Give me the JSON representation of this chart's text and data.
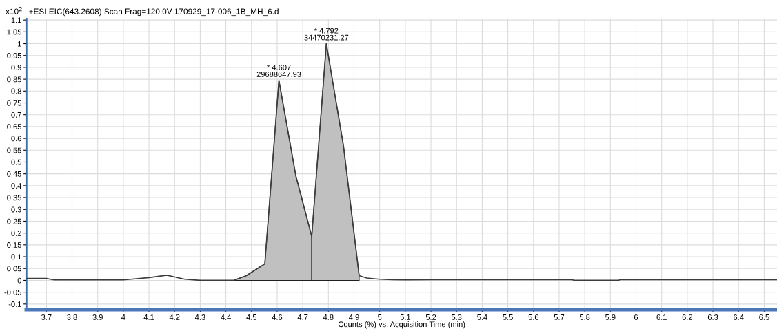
{
  "chart_data": {
    "type": "line",
    "title": "+ESI EIC(643.2608) Scan Frag=120.0V 170929_17-006_1B_MH_6.d",
    "xlabel": "Counts (%) vs. Acquisition Time (min)",
    "ylabel": "x10$^{2}$",
    "series": [
      {
        "color": "#3c3c3c",
        "x": [
          3.622,
          3.7,
          3.73,
          4.0,
          4.1,
          4.17,
          4.24,
          4.3,
          4.43,
          4.48,
          4.552,
          4.607,
          4.673,
          4.735,
          4.792,
          4.859,
          4.92,
          4.95,
          5.0,
          5.05,
          5.1,
          5.2,
          5.75,
          5.76,
          5.93,
          5.94,
          6.55
        ],
        "values": [
          0.008,
          0.008,
          0.002,
          0.002,
          0.012,
          0.022,
          0.005,
          0.0,
          0.0,
          0.02,
          0.07,
          0.845,
          0.442,
          0.186,
          1.0,
          0.567,
          0.02,
          0.01,
          0.005,
          0.003,
          0.002,
          0.003,
          0.003,
          0.0,
          0.0,
          0.003,
          0.003
        ]
      },
      {
        "type": "area",
        "color": "#c0c0c0",
        "x": [
          4.43,
          4.48,
          4.552,
          4.607,
          4.673,
          4.735
        ],
        "values": [
          0.0,
          0.02,
          0.07,
          0.845,
          0.442,
          0.186
        ]
      },
      {
        "type": "area",
        "color": "#c0c0c0",
        "x": [
          4.735,
          4.792,
          4.859,
          4.92
        ],
        "values": [
          0.186,
          1.0,
          0.567,
          0.02
        ]
      }
    ],
    "annotations": [
      {
        "text": "* 4.607\n29688647.93",
        "x": 4.607,
        "y": 0.845
      },
      {
        "text": "* 4.792\n34470231.27",
        "x": 4.792,
        "y": 1.0
      }
    ],
    "xlim": [
      3.622,
      6.55
    ],
    "xticks": [
      3.7,
      3.8,
      3.9,
      4,
      4.1,
      4.2,
      4.3,
      4.4,
      4.5,
      4.6,
      4.7,
      4.8,
      4.9,
      5,
      5.1,
      5.2,
      5.3,
      5.4,
      5.5,
      5.6,
      5.7,
      5.8,
      5.9,
      6,
      6.1,
      6.2,
      6.3,
      6.4,
      6.5
    ],
    "ylim": [
      -0.123,
      1.105
    ],
    "yticks": [
      -0.1,
      -0.05,
      0,
      0.05,
      0.1,
      0.15,
      0.2,
      0.25,
      0.3,
      0.35,
      0.4,
      0.45,
      0.5,
      0.55,
      0.6,
      0.65,
      0.7,
      0.75,
      0.8,
      0.85,
      0.9,
      0.95,
      1,
      1.05,
      1.1
    ],
    "grid": true
  }
}
